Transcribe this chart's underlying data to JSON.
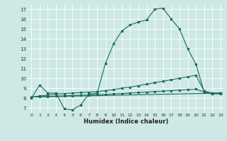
{
  "xlabel": "Humidex (Indice chaleur)",
  "background_color": "#cde8e5",
  "line_color": "#1a6b5e",
  "xlim": [
    -0.5,
    23.5
  ],
  "ylim": [
    6.5,
    17.5
  ],
  "xticks": [
    0,
    1,
    2,
    3,
    4,
    5,
    6,
    7,
    8,
    9,
    10,
    11,
    12,
    13,
    14,
    15,
    16,
    17,
    18,
    19,
    20,
    21,
    22,
    23
  ],
  "yticks": [
    7,
    8,
    9,
    10,
    11,
    12,
    13,
    14,
    15,
    16,
    17
  ],
  "series": [
    {
      "x": [
        0,
        1,
        2,
        3,
        4,
        5,
        6,
        7,
        8,
        9,
        10,
        11,
        12,
        13,
        14,
        15,
        16,
        17,
        18,
        19,
        20,
        21,
        22,
        23
      ],
      "y": [
        8.0,
        9.3,
        8.5,
        8.5,
        6.9,
        6.8,
        7.3,
        8.4,
        8.5,
        11.5,
        13.5,
        14.8,
        15.4,
        15.7,
        15.9,
        17.0,
        17.1,
        16.0,
        15.0,
        13.0,
        11.4,
        8.6,
        8.4,
        8.5
      ]
    },
    {
      "x": [
        0,
        1,
        2,
        3,
        4,
        5,
        6,
        7,
        8,
        9,
        10,
        11,
        12,
        13,
        14,
        15,
        16,
        17,
        18,
        19,
        20,
        21,
        22,
        23
      ],
      "y": [
        8.1,
        8.2,
        8.3,
        8.4,
        8.45,
        8.5,
        8.55,
        8.6,
        8.65,
        8.75,
        8.85,
        9.0,
        9.1,
        9.25,
        9.4,
        9.55,
        9.7,
        9.85,
        10.0,
        10.15,
        10.3,
        8.7,
        8.5,
        8.5
      ]
    },
    {
      "x": [
        0,
        1,
        2,
        3,
        4,
        5,
        6,
        7,
        8,
        9,
        10,
        11,
        12,
        13,
        14,
        15,
        16,
        17,
        18,
        19,
        20,
        21,
        22,
        23
      ],
      "y": [
        8.1,
        8.13,
        8.16,
        8.19,
        8.22,
        8.25,
        8.28,
        8.31,
        8.34,
        8.37,
        8.4,
        8.45,
        8.5,
        8.55,
        8.6,
        8.65,
        8.7,
        8.75,
        8.8,
        8.85,
        8.9,
        8.6,
        8.45,
        8.4
      ]
    },
    {
      "x": [
        0,
        23
      ],
      "y": [
        8.1,
        8.5
      ]
    }
  ]
}
